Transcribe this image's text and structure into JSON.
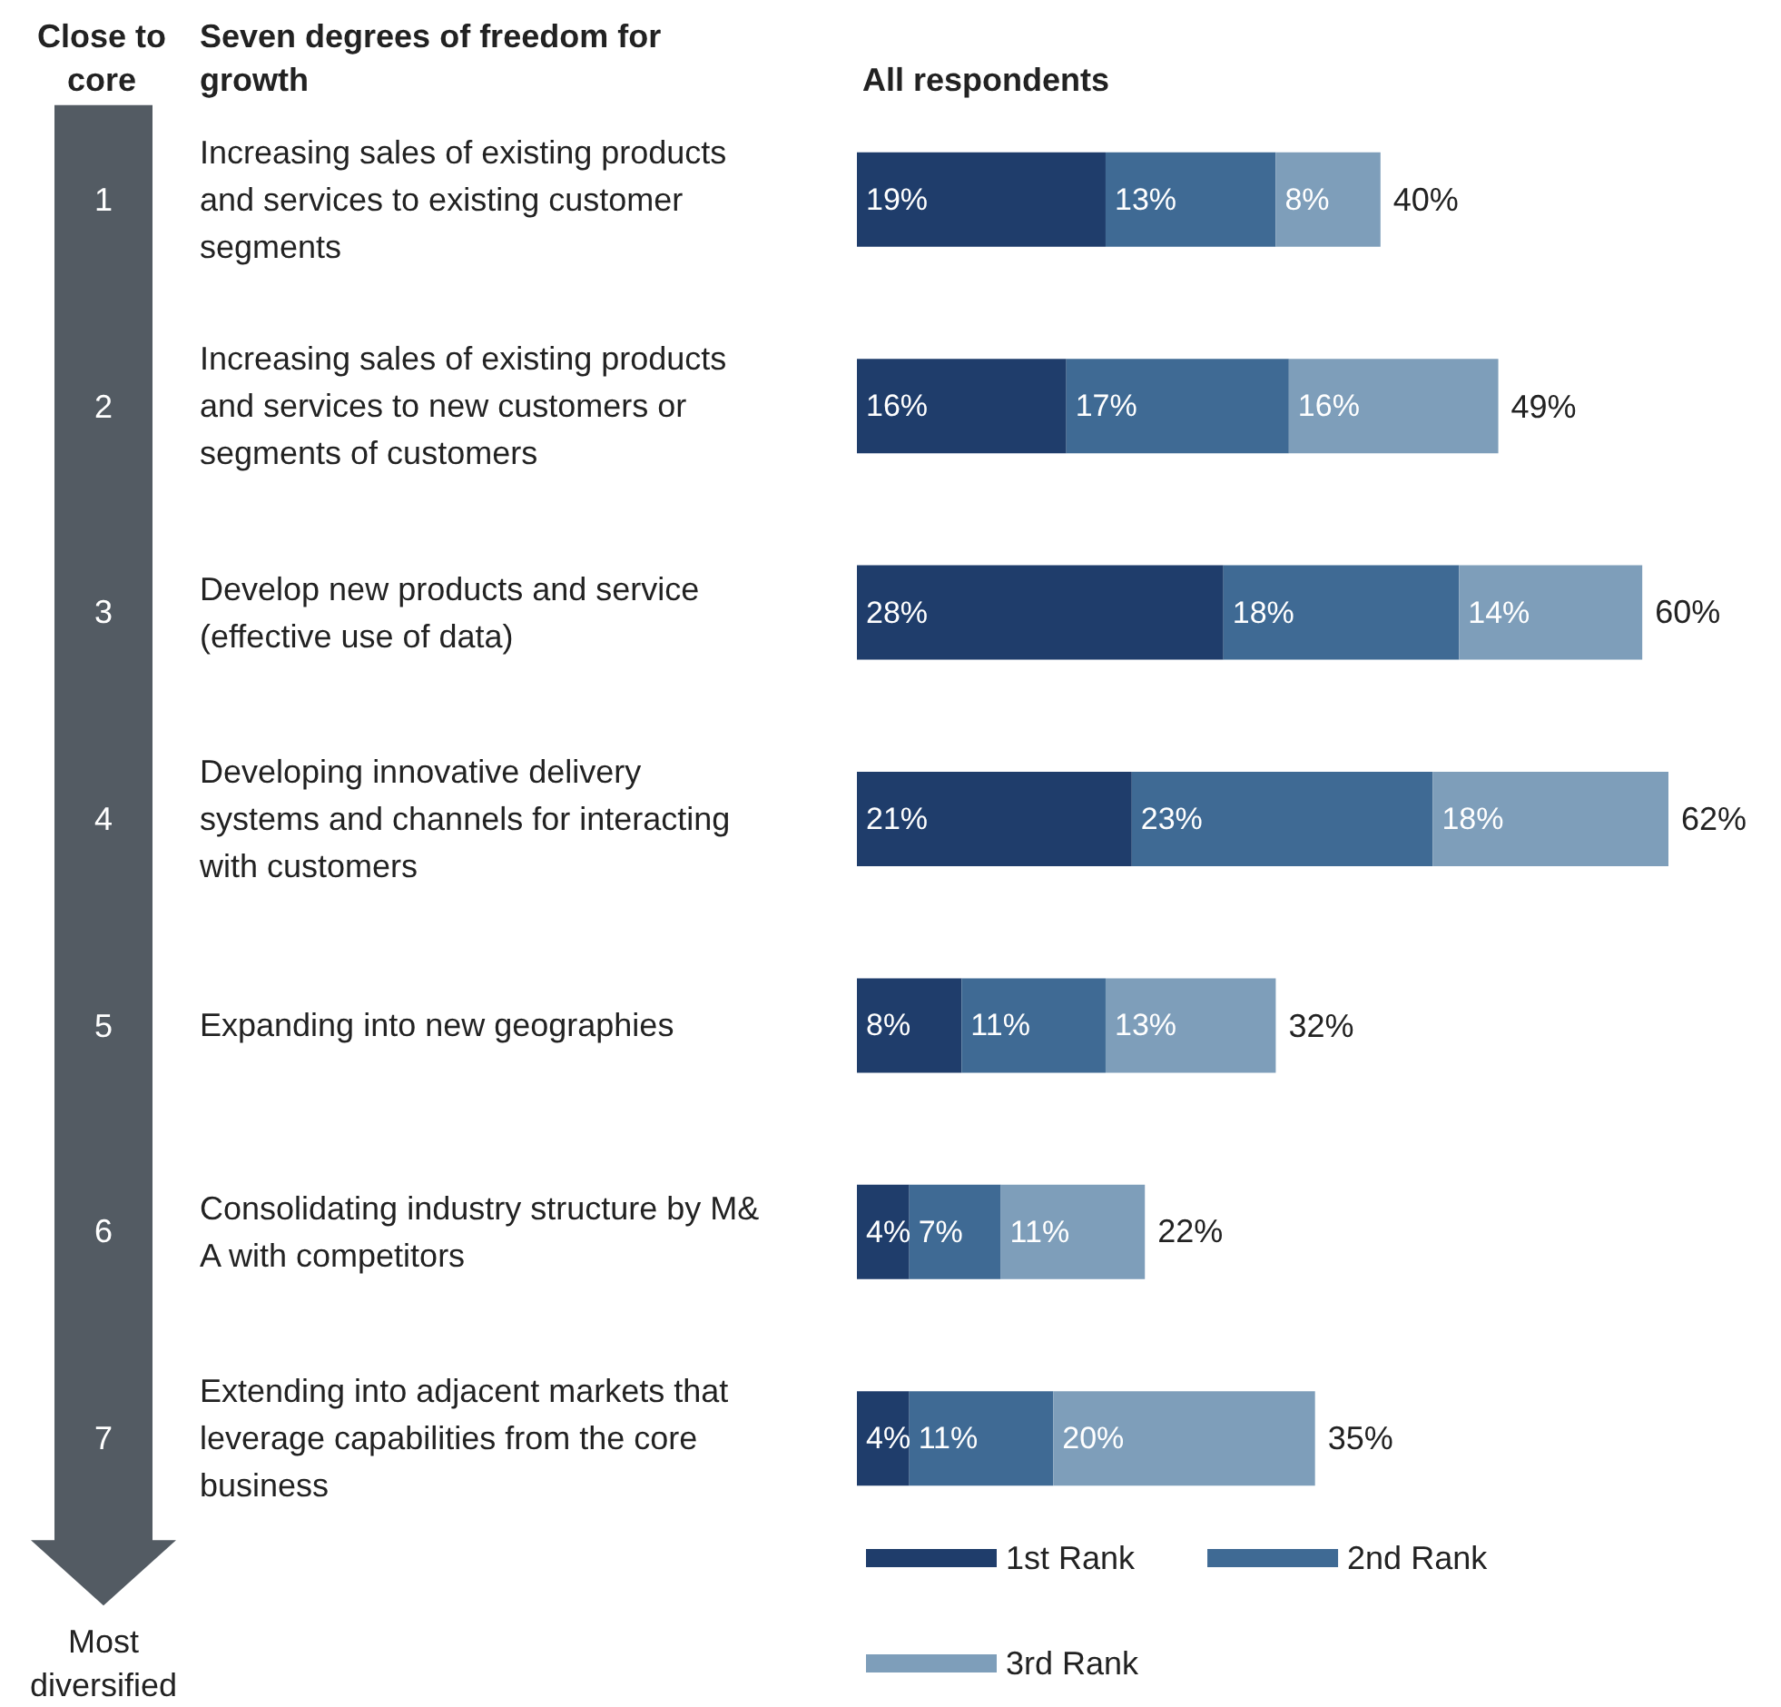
{
  "chart_data": {
    "type": "bar",
    "orientation": "horizontal",
    "stacked": true,
    "title": "All respondents",
    "ylabel": "Seven degrees of freedom for growth",
    "annotations": [
      "Close to core",
      "Most diversified",
      "1",
      "2",
      "3",
      "4",
      "5",
      "6",
      "7"
    ],
    "categories": [
      "Increasing sales of existing products and services to existing customer segments",
      "Increasing sales of existing products and services to new customers or segments of customers",
      "Develop new products and service (effective use of data)",
      "Developing innovative delivery systems and channels for interacting with customers",
      "Expanding into new geographies",
      "Consolidating industry structure by M&A with competitors",
      "Extending into adjacent markets that leverage capabilities from the core business"
    ],
    "series": [
      {
        "name": "1st Rank",
        "color": "#1f3d6b",
        "values": [
          19,
          16,
          28,
          21,
          8,
          4,
          4
        ],
        "value_labels": [
          "19%",
          "16%",
          "28%",
          "21%",
          "8%",
          "4%",
          "4%"
        ]
      },
      {
        "name": "2nd Rank",
        "color": "#3f6a94",
        "values": [
          13,
          17,
          18,
          23,
          11,
          7,
          11
        ],
        "value_labels": [
          "13%",
          "17%",
          "18%",
          "23%",
          "11%",
          "7%",
          "11%"
        ]
      },
      {
        "name": "3rd Rank",
        "color": "#7e9eba",
        "values": [
          8,
          16,
          14,
          18,
          13,
          11,
          20
        ],
        "value_labels": [
          "8%",
          "16%",
          "14%",
          "18%",
          "13%",
          "11%",
          "20%"
        ]
      }
    ],
    "totals": [
      "40%",
      "49%",
      "60%",
      "62%",
      "32%",
      "22%",
      "35%"
    ],
    "legend": "bottom"
  }
}
